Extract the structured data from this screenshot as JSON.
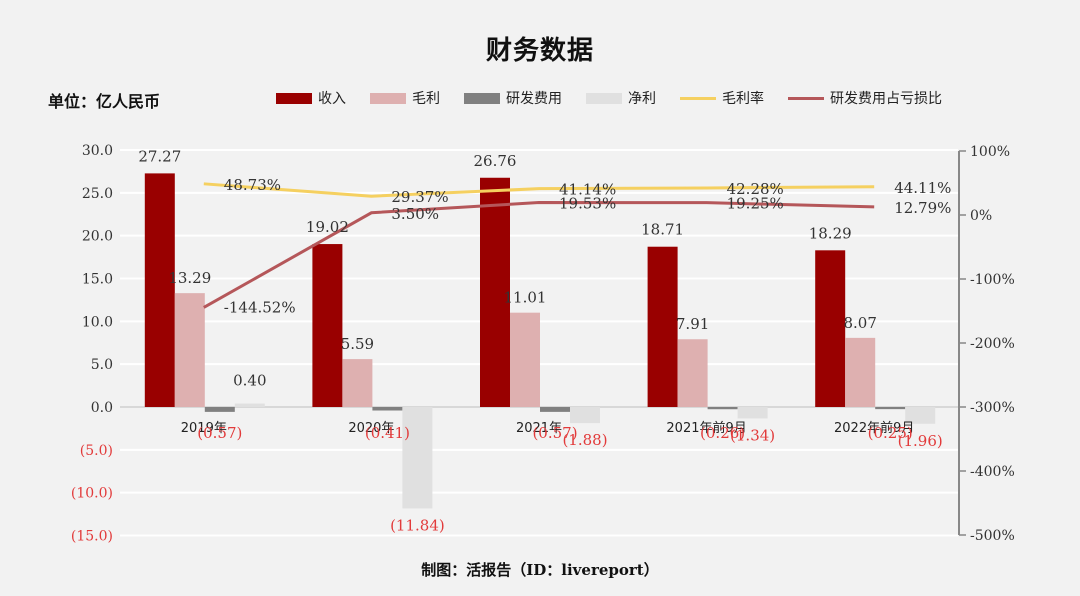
{
  "title": "财务数据",
  "unit_label": "单位：亿人民币",
  "footer": "制图：活报告（ID：livereport）",
  "legend": [
    {
      "label": "收入",
      "type": "bar",
      "color": "#990000"
    },
    {
      "label": "毛利",
      "type": "bar",
      "color": "#deb0b0"
    },
    {
      "label": "研发费用",
      "type": "bar",
      "color": "#808080"
    },
    {
      "label": "净利",
      "type": "bar",
      "color": "#e0e0e0"
    },
    {
      "label": "毛利率",
      "type": "line",
      "color": "#f5d060"
    },
    {
      "label": "研发费用占亏损比",
      "type": "line",
      "color": "#b5575a"
    }
  ],
  "chart_data": {
    "type": "bar",
    "title": "财务数据",
    "ylabel": "单位：亿人民币",
    "categories": [
      "2019年",
      "2020年",
      "2021年",
      "2021年前9月",
      "2022年前9月"
    ],
    "series": [
      {
        "name": "收入",
        "type": "bar",
        "axis": "left",
        "color": "#990000",
        "values": [
          27.27,
          19.02,
          26.76,
          18.71,
          18.29
        ],
        "labels": [
          "27.27",
          "19.02",
          "26.76",
          "18.71",
          "18.29"
        ]
      },
      {
        "name": "毛利",
        "type": "bar",
        "axis": "left",
        "color": "#deb0b0",
        "values": [
          13.29,
          5.59,
          11.01,
          7.91,
          8.07
        ],
        "labels": [
          "13.29",
          "5.59",
          "11.01",
          "7.91",
          "8.07"
        ]
      },
      {
        "name": "研发费用",
        "type": "bar",
        "axis": "left",
        "color": "#808080",
        "values": [
          -0.57,
          -0.41,
          -0.57,
          -0.26,
          -0.25
        ],
        "labels": [
          "(0.57)",
          "(0.41)",
          "(0.57)",
          "(0.26)",
          "(0.25)"
        ]
      },
      {
        "name": "净利",
        "type": "bar",
        "axis": "left",
        "color": "#e0e0e0",
        "values": [
          0.4,
          -11.84,
          -1.88,
          -1.34,
          -1.96
        ],
        "labels": [
          "0.40",
          "(11.84)",
          "(1.88)",
          "(1.34)",
          "(1.96)"
        ]
      },
      {
        "name": "毛利率",
        "type": "line",
        "axis": "right",
        "color": "#f5d060",
        "values": [
          48.73,
          29.37,
          41.14,
          42.28,
          44.11
        ],
        "labels": [
          "48.73%",
          "29.37%",
          "41.14%",
          "42.28%",
          "44.11%"
        ]
      },
      {
        "name": "研发费用占亏损比",
        "type": "line",
        "axis": "right",
        "color": "#b5575a",
        "values": [
          -144.52,
          3.5,
          19.53,
          19.25,
          12.79
        ],
        "labels": [
          "-144.52%",
          "3.50%",
          "19.53%",
          "19.25%",
          "12.79%"
        ]
      }
    ],
    "left_axis": {
      "ylim": [
        -15,
        30
      ],
      "ticks": [
        30,
        25,
        20,
        15,
        10,
        5,
        0,
        -5,
        -10,
        -15
      ],
      "tick_labels": [
        "30.0",
        "25.0",
        "20.0",
        "15.0",
        "10.0",
        "5.0",
        "0.0",
        "(5.0)",
        "(10.0)",
        "(15.0)"
      ]
    },
    "right_axis": {
      "ylim": [
        -500,
        100
      ],
      "ticks": [
        100,
        0,
        -100,
        -200,
        -300,
        -400,
        -500
      ],
      "tick_labels": [
        "100%",
        "0%",
        "-100%",
        "-200%",
        "-300%",
        "-400%",
        "-500%"
      ]
    },
    "grid": true,
    "legend_position": "top"
  }
}
